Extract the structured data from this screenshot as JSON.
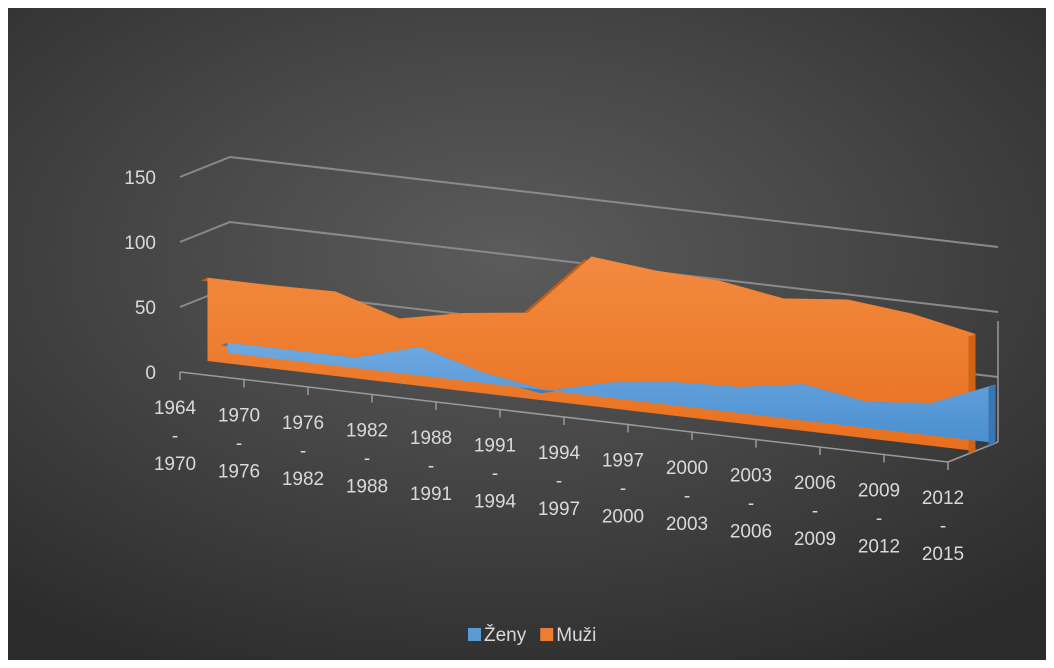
{
  "chart_data": {
    "type": "area",
    "variant": "3d",
    "title": "",
    "xlabel": "",
    "ylabel": "",
    "ylim": [
      0,
      150
    ],
    "yticks": [
      "0",
      "50",
      "100",
      "150"
    ],
    "categories": [
      "1964 - 1970",
      "1970 - 1976",
      "1976 - 1982",
      "1982 - 1988",
      "1988 - 1991",
      "1991 - 1994",
      "1994 - 1997",
      "1997 - 2000",
      "2000 - 2003",
      "2003 - 2006",
      "2006 - 2009",
      "2009 - 2012",
      "2012 - 2015"
    ],
    "series": [
      {
        "name": "Ženy",
        "color": "#5b9bd5",
        "values": [
          8,
          8,
          8,
          22,
          8,
          0,
          12,
          18,
          20,
          28,
          20,
          25,
          45
        ]
      },
      {
        "name": "Muži",
        "color": "#ed7d31",
        "values": [
          64,
          64,
          65,
          50,
          60,
          66,
          115,
          110,
          108,
          100,
          105,
          100,
          90
        ]
      }
    ],
    "grid": true,
    "legend_position": "bottom"
  }
}
